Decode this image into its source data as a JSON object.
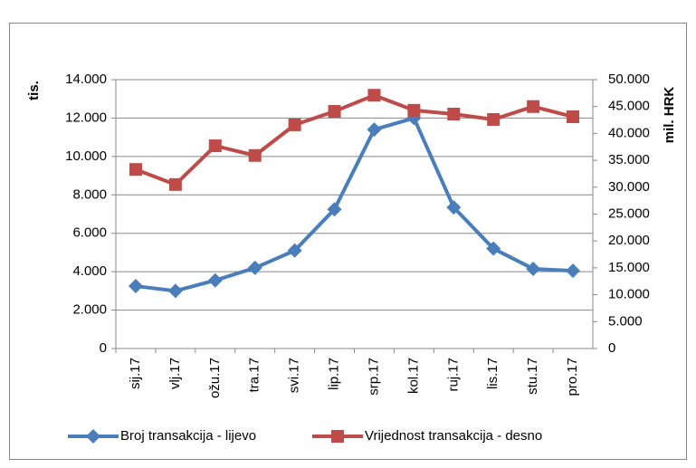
{
  "chart_data": {
    "type": "line",
    "y_label": "tis.",
    "y2_label": "mil. HRK",
    "categories": [
      "sij.17",
      "vlj.17",
      "ožu.17",
      "tra.17",
      "svi.17",
      "lip.17",
      "srp.17",
      "kol.17",
      "ruj.17",
      "lis.17",
      "stu.17",
      "pro.17"
    ],
    "series": [
      {
        "name": "Broj transakcija - lijevo",
        "color": "#4a7ebb",
        "marker": "diamond",
        "axis": "y",
        "values": [
          3250,
          3000,
          3550,
          4200,
          5100,
          7250,
          11400,
          12000,
          7350,
          5200,
          4150,
          4050
        ]
      },
      {
        "name": "Vrijednost transakcija - desno",
        "color": "#be4b48",
        "marker": "square",
        "axis": "y2",
        "values": [
          33300,
          30500,
          37700,
          35900,
          41600,
          44100,
          47100,
          44300,
          43600,
          42600,
          45000,
          43100
        ]
      }
    ],
    "ylim": [
      0,
      14000
    ],
    "yticks": [
      0,
      {
        "value": 2000,
        "label": "2.000"
      },
      {
        "value": 4000,
        "label": "4.000"
      },
      {
        "value": 6000,
        "label": "6.000"
      },
      {
        "value": 8000,
        "label": "8.000"
      },
      {
        "value": 10000,
        "label": "10.000"
      },
      {
        "value": 12000,
        "label": "12.000"
      },
      {
        "value": 14000,
        "label": "14.000"
      }
    ],
    "y2lim": [
      0,
      50000
    ],
    "y2ticks": [
      0,
      {
        "value": 5000,
        "label": "5.000"
      },
      {
        "value": 10000,
        "label": "10.000"
      },
      {
        "value": 15000,
        "label": "15.000"
      },
      {
        "value": 20000,
        "label": "20.000"
      },
      {
        "value": 25000,
        "label": "25.000"
      },
      {
        "value": 30000,
        "label": "30.000"
      },
      {
        "value": 35000,
        "label": "35.000"
      },
      {
        "value": 40000,
        "label": "40.000"
      },
      {
        "value": 45000,
        "label": "45.000"
      },
      {
        "value": 50000,
        "label": "50.000"
      }
    ],
    "grid": true,
    "legend": "bottom"
  }
}
